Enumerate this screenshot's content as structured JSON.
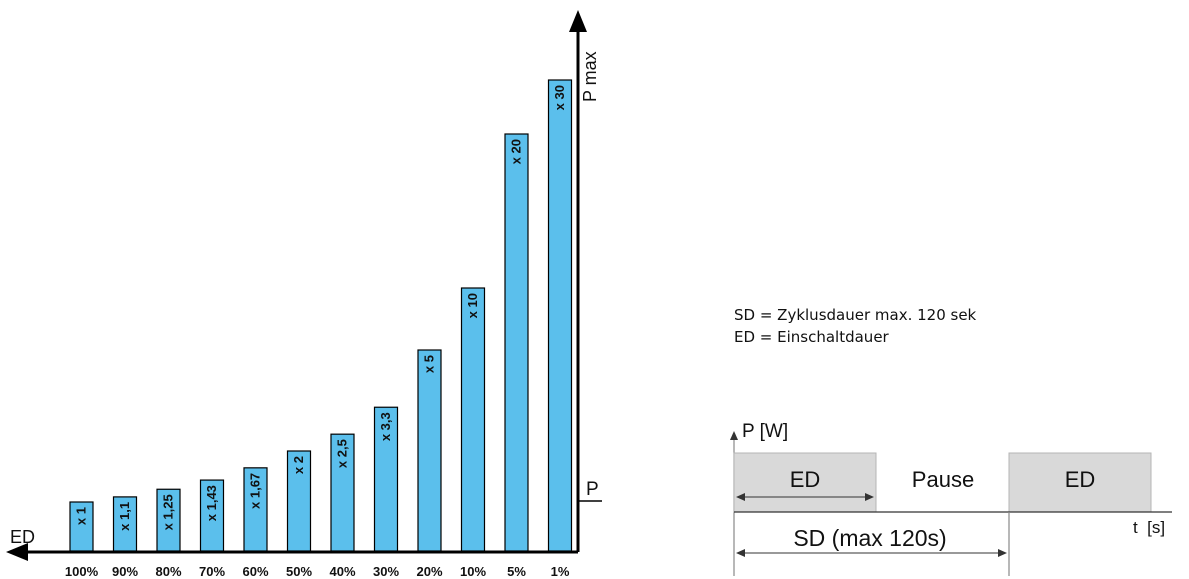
{
  "chart_data": {
    "type": "bar",
    "categories": [
      "100%",
      "90%",
      "80%",
      "70%",
      "60%",
      "50%",
      "40%",
      "30%",
      "20%",
      "10%",
      "5%",
      "1%"
    ],
    "values": [
      1,
      1.1,
      1.25,
      1.43,
      1.67,
      2,
      2.5,
      3.3,
      5,
      10,
      20,
      30
    ],
    "bar_labels": [
      "x 1",
      "x 1,1",
      "x 1,25",
      "x 1,43",
      "x 1,67",
      "x 2",
      "x 2,5",
      "x 3,3",
      "x 5",
      "x 10",
      "x 20",
      "x 30"
    ],
    "xlabel": "ED",
    "ylabel": "P max",
    "ylabel_base": "P",
    "bar_color": "#5bbfec",
    "y_scale": "non-linear"
  },
  "legend": {
    "line1": "SD = Zyklusdauer max. 120 sek",
    "line2": "ED = Einschaltdauer"
  },
  "timing": {
    "y_axis_label": "P [W]",
    "x_axis_label": "t  [s]",
    "block1_label": "ED",
    "pause_label": "Pause",
    "block2_label": "ED",
    "sd_label": "SD (max 120s)",
    "block_color": "#d9d9d9"
  }
}
